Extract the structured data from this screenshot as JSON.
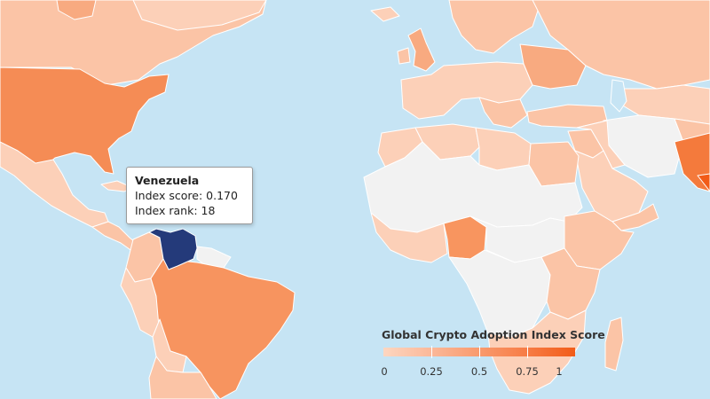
{
  "map": {
    "colors": {
      "ocean": "#c6e4f4",
      "no_data": "#f2f2f2",
      "selected": "#243a7a",
      "score_low": "#fdd6c0",
      "score_high": "#f25c18"
    }
  },
  "tooltip": {
    "country": "Venezuela",
    "rows": [
      {
        "label": "Index score",
        "value": "0.170"
      },
      {
        "label": "Index rank",
        "value": "18"
      }
    ]
  },
  "legend": {
    "title": "Global Crypto Adoption Index Score",
    "ticks": [
      "0",
      "0.25",
      "0.5",
      "0.75",
      "1"
    ]
  }
}
